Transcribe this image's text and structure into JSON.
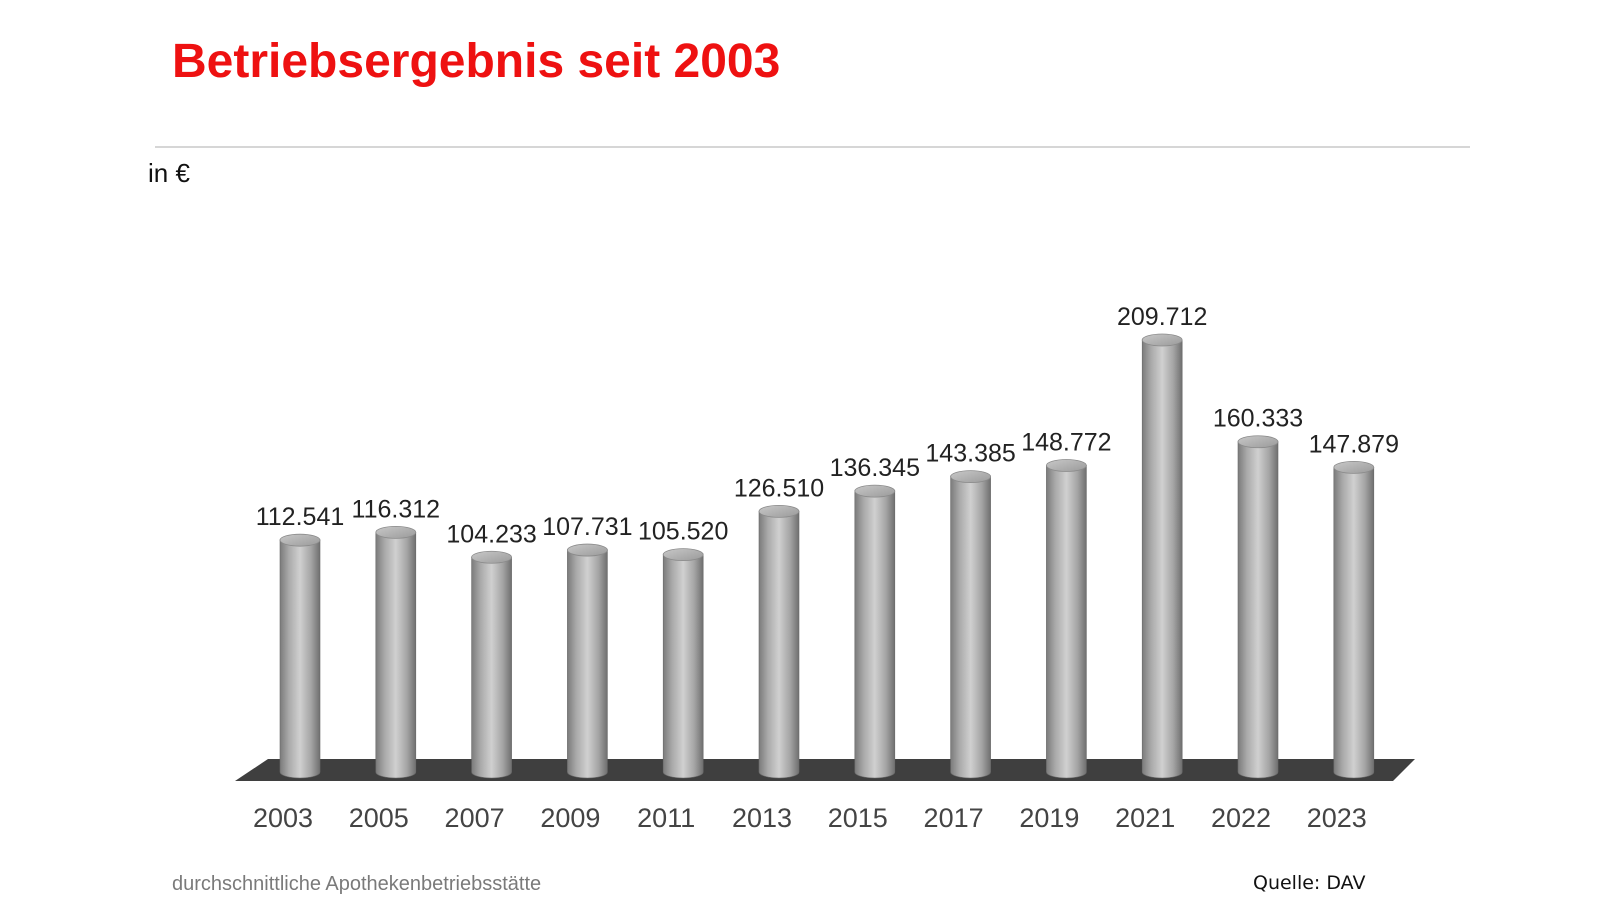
{
  "slide": {
    "title": "Betriebsergebnis seit 2003",
    "unit_label": "in €",
    "footnote": "durchschnittliche Apothekenbetriebsstätte",
    "source": "Quelle: DAV"
  },
  "colors": {
    "title": "#ee1111",
    "bar_dark": "#7b7b7b",
    "bar_mid": "#d0d0d0",
    "bar_top": "#bdbdbd",
    "floor": "#3f3f3f",
    "label_text": "#222222"
  },
  "chart_data": {
    "type": "bar",
    "style": "3d-cylinder",
    "categories": [
      "2003",
      "2005",
      "2007",
      "2009",
      "2011",
      "2013",
      "2015",
      "2017",
      "2019",
      "2021",
      "2022",
      "2023"
    ],
    "values": [
      112541,
      116312,
      104233,
      107731,
      105520,
      126510,
      136345,
      143385,
      148772,
      209712,
      160333,
      147879
    ],
    "value_labels": [
      "112.541",
      "116.312",
      "104.233",
      "107.731",
      "105.520",
      "126.510",
      "136.345",
      "143.385",
      "148.772",
      "209.712",
      "160.333",
      "147.879"
    ],
    "title": "Betriebsergebnis seit 2003",
    "ylabel": "in €",
    "xlabel": "",
    "ylim": [
      0,
      209712
    ],
    "grid": false,
    "legend": "none"
  }
}
